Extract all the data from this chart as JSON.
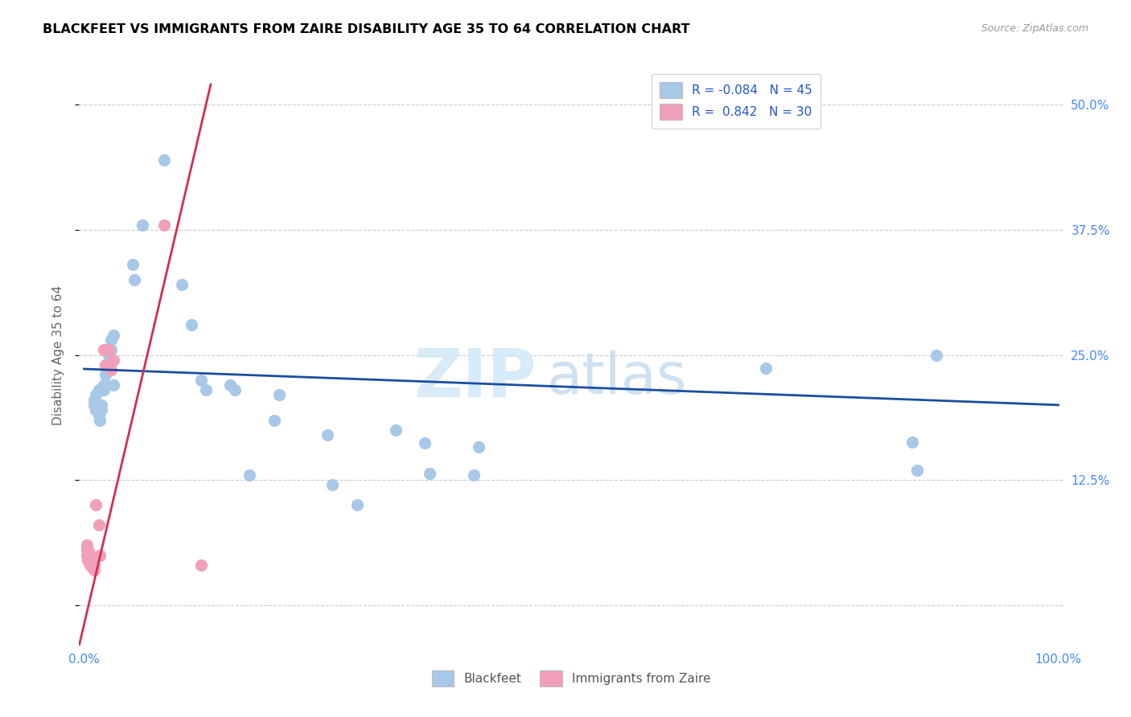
{
  "title": "BLACKFEET VS IMMIGRANTS FROM ZAIRE DISABILITY AGE 35 TO 64 CORRELATION CHART",
  "source": "Source: ZipAtlas.com",
  "ylabel": "Disability Age 35 to 64",
  "blue_color": "#a8c8e8",
  "pink_color": "#f0a0b8",
  "trendline_blue": "#1a4fa0",
  "trendline_pink": "#d03050",
  "blue_r": "-0.084",
  "blue_n": "45",
  "pink_r": "0.842",
  "pink_n": "30",
  "axis_label_color": "#4488ff",
  "ylabel_color": "#666666",
  "grid_color": "#cccccc",
  "blue_points": [
    [
      0.01,
      0.2
    ],
    [
      0.01,
      0.205
    ],
    [
      0.012,
      0.195
    ],
    [
      0.012,
      0.21
    ],
    [
      0.015,
      0.2
    ],
    [
      0.015,
      0.19
    ],
    [
      0.015,
      0.215
    ],
    [
      0.016,
      0.185
    ],
    [
      0.018,
      0.195
    ],
    [
      0.018,
      0.2
    ],
    [
      0.02,
      0.22
    ],
    [
      0.02,
      0.215
    ],
    [
      0.022,
      0.23
    ],
    [
      0.022,
      0.22
    ],
    [
      0.025,
      0.24
    ],
    [
      0.025,
      0.25
    ],
    [
      0.028,
      0.255
    ],
    [
      0.028,
      0.265
    ],
    [
      0.03,
      0.27
    ],
    [
      0.03,
      0.22
    ],
    [
      0.05,
      0.34
    ],
    [
      0.052,
      0.325
    ],
    [
      0.06,
      0.38
    ],
    [
      0.082,
      0.445
    ],
    [
      0.1,
      0.32
    ],
    [
      0.11,
      0.28
    ],
    [
      0.12,
      0.225
    ],
    [
      0.125,
      0.215
    ],
    [
      0.15,
      0.22
    ],
    [
      0.155,
      0.215
    ],
    [
      0.17,
      0.13
    ],
    [
      0.195,
      0.185
    ],
    [
      0.2,
      0.21
    ],
    [
      0.25,
      0.17
    ],
    [
      0.255,
      0.12
    ],
    [
      0.28,
      0.1
    ],
    [
      0.32,
      0.175
    ],
    [
      0.35,
      0.162
    ],
    [
      0.355,
      0.132
    ],
    [
      0.4,
      0.13
    ],
    [
      0.405,
      0.158
    ],
    [
      0.7,
      0.237
    ],
    [
      0.85,
      0.163
    ],
    [
      0.855,
      0.135
    ],
    [
      0.875,
      0.25
    ]
  ],
  "pink_points": [
    [
      0.003,
      0.06
    ],
    [
      0.003,
      0.055
    ],
    [
      0.003,
      0.05
    ],
    [
      0.004,
      0.055
    ],
    [
      0.004,
      0.05
    ],
    [
      0.004,
      0.045
    ],
    [
      0.005,
      0.052
    ],
    [
      0.005,
      0.048
    ],
    [
      0.005,
      0.043
    ],
    [
      0.006,
      0.05
    ],
    [
      0.006,
      0.045
    ],
    [
      0.006,
      0.04
    ],
    [
      0.007,
      0.048
    ],
    [
      0.007,
      0.043
    ],
    [
      0.008,
      0.045
    ],
    [
      0.008,
      0.04
    ],
    [
      0.009,
      0.043
    ],
    [
      0.009,
      0.038
    ],
    [
      0.01,
      0.04
    ],
    [
      0.01,
      0.035
    ],
    [
      0.012,
      0.1
    ],
    [
      0.015,
      0.08
    ],
    [
      0.016,
      0.05
    ],
    [
      0.02,
      0.255
    ],
    [
      0.022,
      0.24
    ],
    [
      0.025,
      0.255
    ],
    [
      0.028,
      0.235
    ],
    [
      0.03,
      0.245
    ],
    [
      0.082,
      0.38
    ],
    [
      0.12,
      0.04
    ]
  ],
  "xlim": [
    -0.005,
    1.005
  ],
  "ylim": [
    -0.04,
    0.54
  ],
  "ytick_vals": [
    0.0,
    0.125,
    0.25,
    0.375,
    0.5
  ],
  "ytick_labels_right": [
    "",
    "12.5%",
    "25.0%",
    "37.5%",
    "50.0%"
  ],
  "xtick_vals": [
    0.0,
    0.1,
    0.2,
    0.3,
    0.4,
    0.5,
    0.6,
    0.7,
    0.8,
    0.9,
    1.0
  ],
  "blue_trend_endpoints": [
    [
      0.0,
      0.236
    ],
    [
      1.0,
      0.2
    ]
  ],
  "pink_trend_endpoints": [
    [
      -0.005,
      -0.04
    ],
    [
      0.13,
      0.52
    ]
  ]
}
